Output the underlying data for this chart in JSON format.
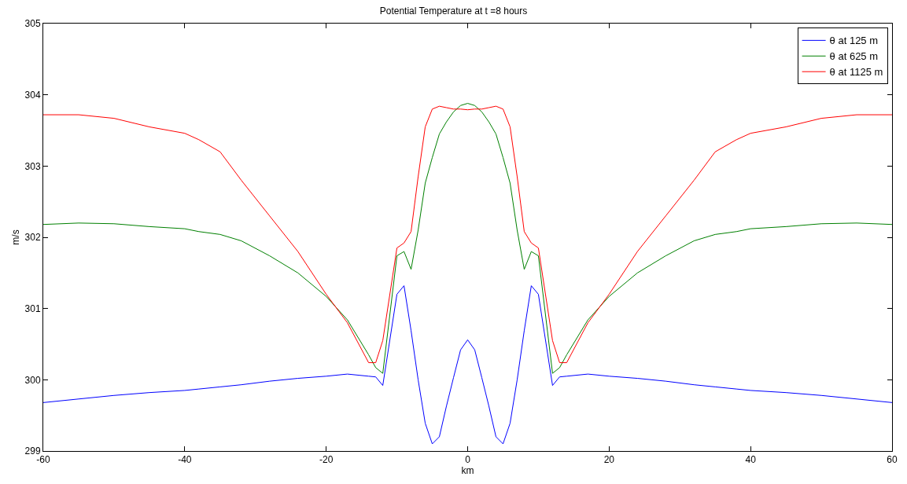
{
  "chart_data": {
    "type": "line",
    "title": "Potential Temperature at t =8 hours",
    "xlabel": "km",
    "ylabel": "m/s",
    "x": [
      -60,
      -55,
      -50,
      -45,
      -40,
      -38,
      -35,
      -32,
      -28,
      -24,
      -20,
      -17,
      -14,
      -13,
      -12,
      -10,
      -9,
      -8,
      -7,
      -6,
      -5,
      -4,
      -3,
      -2,
      -1,
      0,
      1,
      2,
      3,
      4,
      5,
      6,
      7,
      8,
      9,
      10,
      12,
      13,
      14,
      17,
      20,
      24,
      28,
      32,
      35,
      38,
      40,
      45,
      50,
      55,
      60
    ],
    "series": [
      {
        "name": "θ at 125 m",
        "color": "#0000ff",
        "values": [
          299.68,
          299.73,
          299.78,
          299.82,
          299.85,
          299.87,
          299.9,
          299.93,
          299.98,
          300.02,
          300.05,
          300.08,
          300.05,
          300.04,
          299.92,
          301.2,
          301.32,
          300.69,
          300.0,
          299.39,
          299.1,
          299.2,
          299.63,
          300.03,
          300.42,
          300.56,
          300.42,
          300.03,
          299.63,
          299.2,
          299.1,
          299.39,
          300.0,
          300.69,
          301.32,
          301.2,
          299.92,
          300.04,
          300.05,
          300.08,
          300.05,
          300.02,
          299.98,
          299.93,
          299.9,
          299.87,
          299.85,
          299.82,
          299.78,
          299.73,
          299.68
        ]
      },
      {
        "name": "θ at 625 m",
        "color": "#008000",
        "values": [
          302.18,
          302.2,
          302.19,
          302.15,
          302.12,
          302.08,
          302.04,
          301.95,
          301.74,
          301.5,
          301.17,
          300.84,
          300.35,
          300.17,
          300.09,
          301.74,
          301.8,
          301.55,
          302.1,
          302.76,
          303.12,
          303.45,
          303.62,
          303.76,
          303.85,
          303.88,
          303.85,
          303.76,
          303.62,
          303.45,
          303.12,
          302.76,
          302.1,
          301.55,
          301.8,
          301.74,
          300.09,
          300.17,
          300.35,
          300.84,
          301.17,
          301.5,
          301.74,
          301.95,
          302.04,
          302.08,
          302.12,
          302.15,
          302.19,
          302.2,
          302.18
        ]
      },
      {
        "name": "θ at 1125 m",
        "color": "#ff0000",
        "values": [
          303.72,
          303.72,
          303.67,
          303.55,
          303.46,
          303.37,
          303.2,
          302.8,
          302.3,
          301.8,
          301.2,
          300.8,
          300.24,
          300.24,
          300.55,
          301.85,
          301.92,
          302.08,
          302.85,
          303.55,
          303.8,
          303.84,
          303.82,
          303.8,
          303.8,
          303.79,
          303.8,
          303.8,
          303.82,
          303.84,
          303.8,
          303.55,
          302.85,
          302.08,
          301.92,
          301.85,
          300.55,
          300.24,
          300.24,
          300.8,
          301.2,
          301.8,
          302.3,
          302.8,
          303.2,
          303.37,
          303.46,
          303.55,
          303.67,
          303.72,
          303.72
        ]
      }
    ],
    "xlim": [
      -60,
      60
    ],
    "xticks": [
      -60,
      -40,
      -20,
      0,
      20,
      40,
      60
    ],
    "ylim": [
      299,
      305
    ],
    "yticks": [
      299,
      300,
      301,
      302,
      303,
      304,
      305
    ],
    "legend": "top right",
    "marker": "none",
    "line_style": "solid"
  }
}
